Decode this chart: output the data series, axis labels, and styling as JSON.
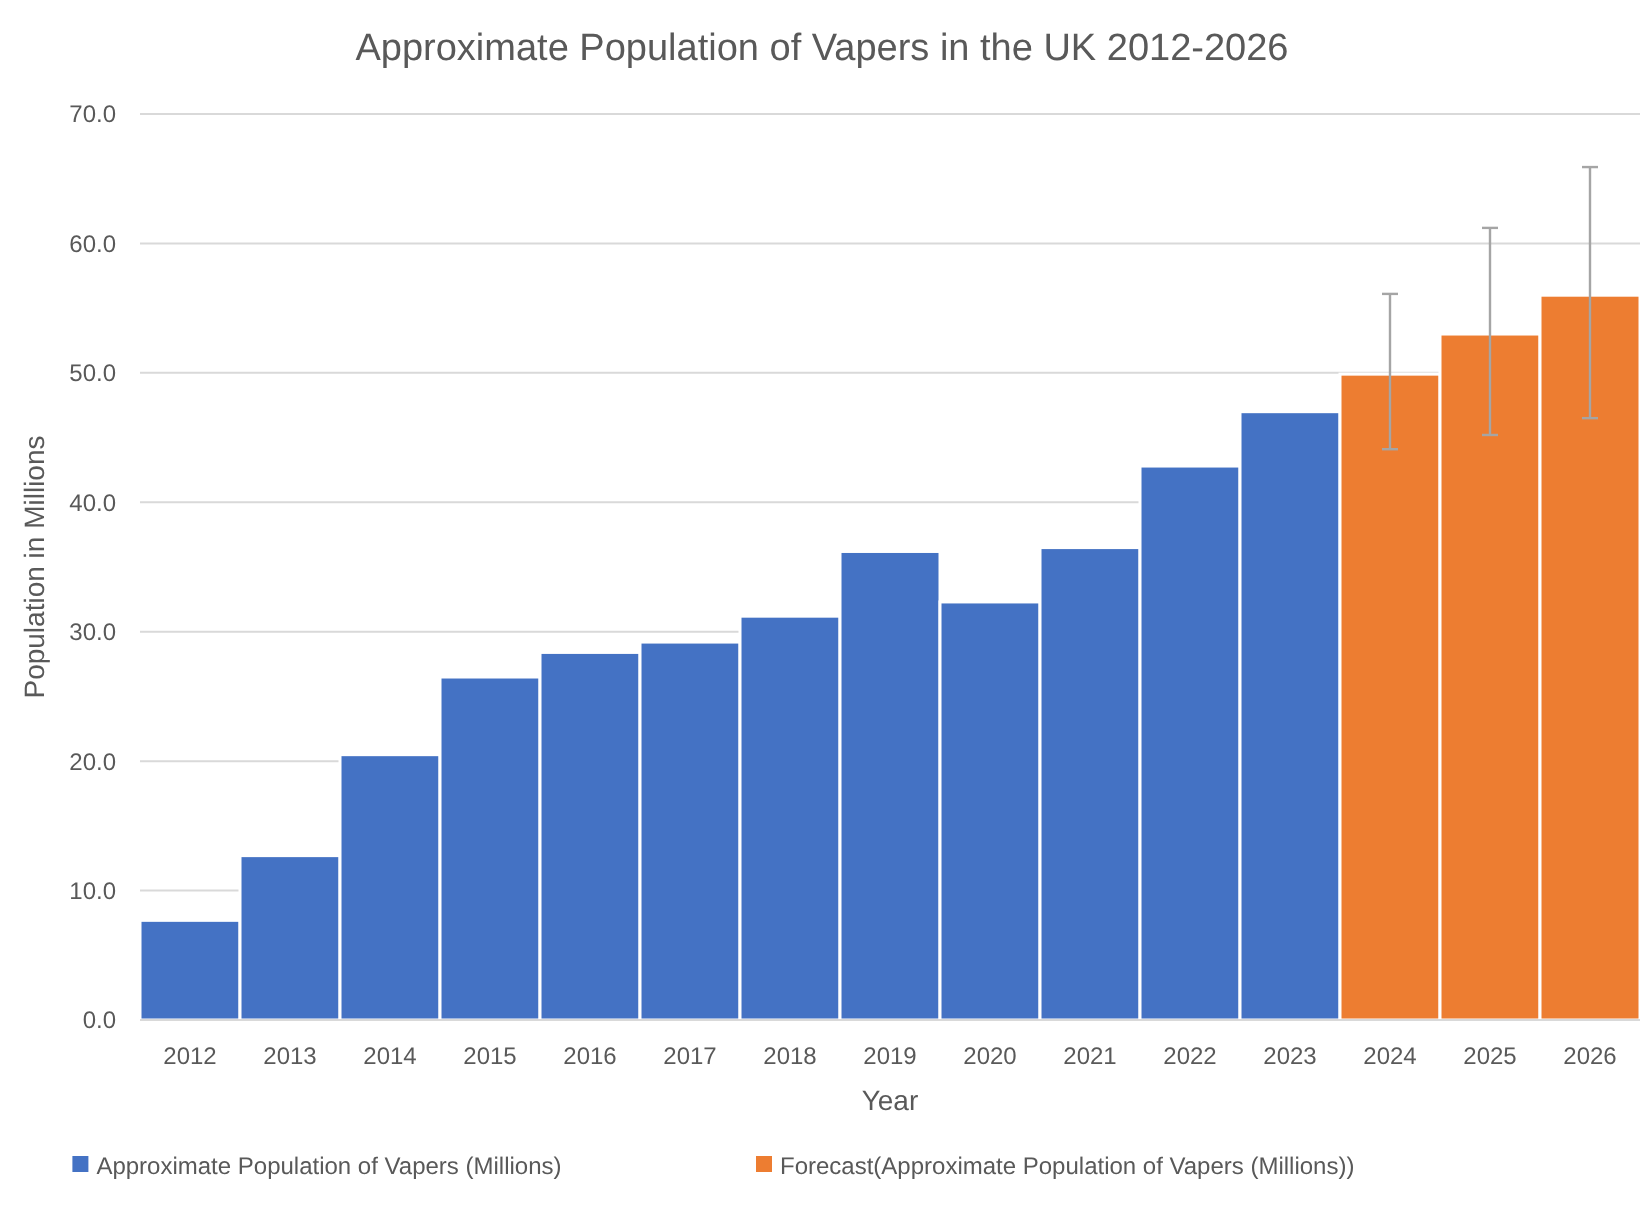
{
  "chart_data": {
    "type": "bar",
    "title": "Approximate Population of Vapers in the UK 2012-2026",
    "xlabel": "Year",
    "ylabel": "Population in Millions",
    "categories": [
      "2012",
      "2013",
      "2014",
      "2015",
      "2016",
      "2017",
      "2018",
      "2019",
      "2020",
      "2021",
      "2022",
      "2023",
      "2024",
      "2025",
      "2026"
    ],
    "series": [
      {
        "name": "Approximate Population of Vapers (Millions)",
        "color": "#4472c4",
        "values": [
          7.7,
          12.7,
          20.5,
          26.5,
          28.4,
          29.2,
          31.2,
          36.2,
          32.3,
          36.5,
          42.8,
          47.0,
          null,
          null,
          null
        ]
      },
      {
        "name": "Forecast(Approximate Population of Vapers (Millions))",
        "color": "#ed7d31",
        "values": [
          null,
          null,
          null,
          null,
          null,
          null,
          null,
          null,
          null,
          null,
          null,
          null,
          49.9,
          53.0,
          56.0
        ],
        "errors": [
          null,
          null,
          null,
          null,
          null,
          null,
          null,
          null,
          null,
          null,
          null,
          null,
          [
            44.1,
            56.1
          ],
          [
            45.2,
            61.2
          ],
          [
            46.5,
            65.9
          ]
        ]
      }
    ],
    "ylim": [
      0,
      70
    ],
    "yticks": [
      {
        "value": 0,
        "label": "0.0"
      },
      {
        "value": 10,
        "label": "10.0"
      },
      {
        "value": 20,
        "label": "20.0"
      },
      {
        "value": 30,
        "label": "30.0"
      },
      {
        "value": 40,
        "label": "40.0"
      },
      {
        "value": 50,
        "label": "50.0"
      },
      {
        "value": 60,
        "label": "60.0"
      },
      {
        "value": 70,
        "label": "70.0"
      }
    ],
    "grid": "y",
    "legend": "bottom"
  }
}
